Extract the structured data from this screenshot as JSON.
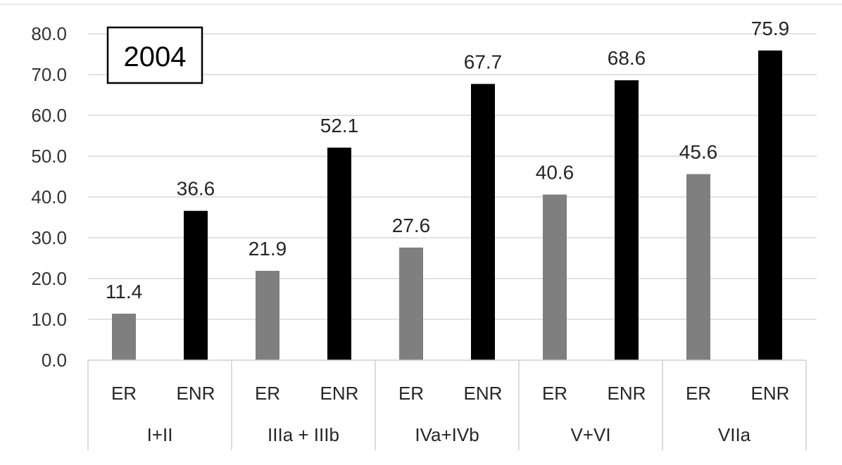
{
  "chart_data": {
    "type": "bar",
    "title": "2004",
    "xlabel": "",
    "ylabel": "",
    "ylim": [
      0,
      80
    ],
    "yticks": [
      "0.0",
      "10.0",
      "20.0",
      "30.0",
      "40.0",
      "50.0",
      "60.0",
      "70.0",
      "80.0"
    ],
    "grid": true,
    "legend": "none",
    "groups": [
      {
        "label": "I+II",
        "bars": [
          {
            "label": "ER",
            "value": 11.4
          },
          {
            "label": "ENR",
            "value": 36.6
          }
        ]
      },
      {
        "label": "IIIa + IIIb",
        "bars": [
          {
            "label": "ER",
            "value": 21.9
          },
          {
            "label": "ENR",
            "value": 52.1
          }
        ]
      },
      {
        "label": "IVa+IVb",
        "bars": [
          {
            "label": "ER",
            "value": 27.6
          },
          {
            "label": "ENR",
            "value": 67.7
          }
        ]
      },
      {
        "label": "V+VI",
        "bars": [
          {
            "label": "ER",
            "value": 40.6
          },
          {
            "label": "ENR",
            "value": 68.6
          }
        ]
      },
      {
        "label": "VIIa",
        "bars": [
          {
            "label": "ER",
            "value": 45.6
          },
          {
            "label": "ENR",
            "value": 75.9
          }
        ]
      }
    ],
    "colors": {
      "ER": "#7f7f7f",
      "ENR": "#000000",
      "grid": "#d9d9d9"
    }
  }
}
